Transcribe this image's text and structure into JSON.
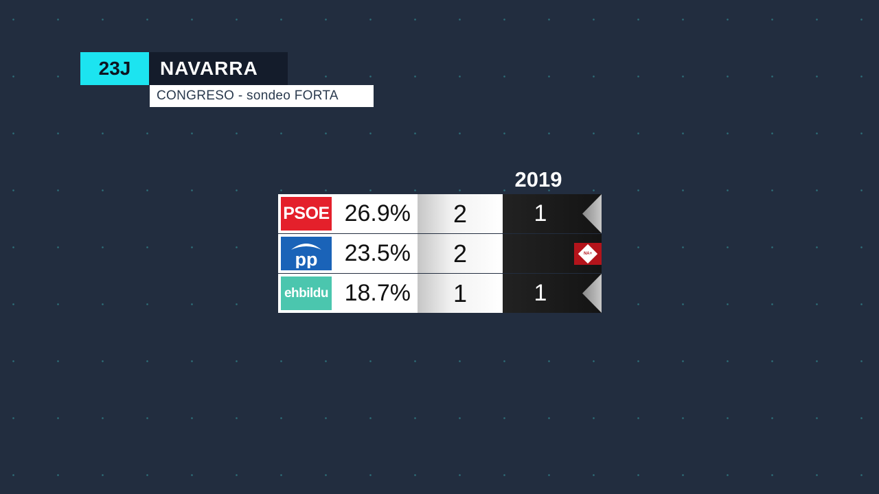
{
  "header": {
    "date_tag": "23J",
    "region": "NAVARRA",
    "subtitle": "CONGRESO - sondeo FORTA"
  },
  "table": {
    "previous_year_label": "2019",
    "rows": [
      {
        "party_logo": "PSOE",
        "logo_color": "#e4202b",
        "percent": "26.9%",
        "seats": "2",
        "seats_2019": "1"
      },
      {
        "party_logo": "pp",
        "logo_color": "#1a63b8",
        "percent": "23.5%",
        "seats": "2",
        "seats_2019": "",
        "badge_2019": "NA+"
      },
      {
        "party_logo": "ehbildu",
        "logo_color": "#4bc6ae",
        "percent": "18.7%",
        "seats": "1",
        "seats_2019": "1"
      }
    ]
  },
  "colors": {
    "background": "#222d3f",
    "accent": "#1ce4f0"
  }
}
